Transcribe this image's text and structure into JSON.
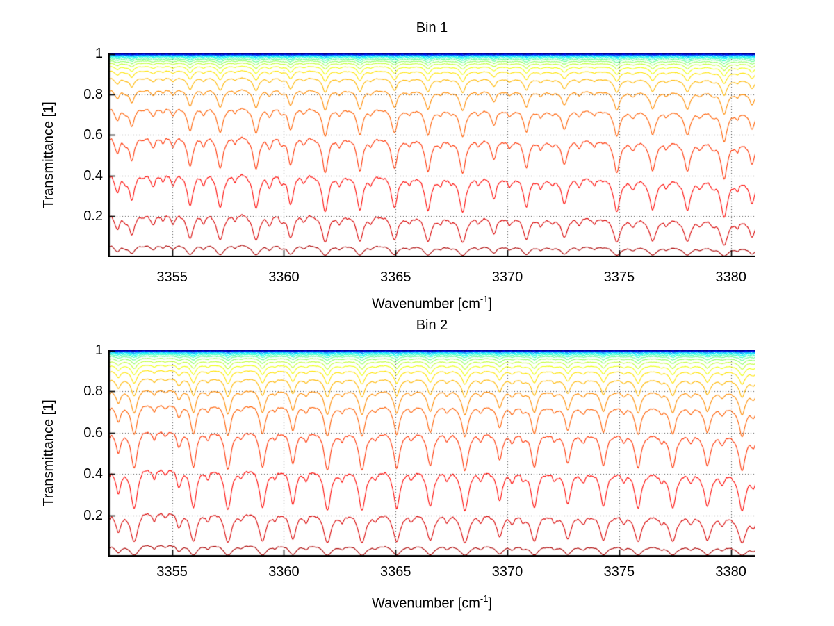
{
  "figure": {
    "background": "#ffffff",
    "axis_color": "#000000",
    "grid_color": "#4d4d4d",
    "grid_style": "dotted"
  },
  "line_colors": [
    "#000080",
    "#0000AC",
    "#0000D8",
    "#0006FF",
    "#0032FF",
    "#005EFF",
    "#008BFF",
    "#00B7FF",
    "#00E3FF",
    "#11FFEE",
    "#3DFFC2",
    "#69FF96",
    "#96FF69",
    "#C2FF3D",
    "#EEFF11",
    "#FFE300",
    "#FFB700",
    "#FF8B00",
    "#FF5E00",
    "#FF3200",
    "#FF0600",
    "#D80000",
    "#AC0000",
    "#800000"
  ],
  "chart_data": [
    {
      "type": "line",
      "title": "Bin 1",
      "xlabel": {
        "prefix": "Wavenumber [cm",
        "sup": "-1",
        "suffix": "]"
      },
      "ylabel": "Transmittance [1]",
      "x_range": [
        3352.15,
        3381.1
      ],
      "y_range": [
        0,
        1
      ],
      "x_ticks": [
        {
          "value": 3355,
          "label": "3355"
        },
        {
          "value": 3360,
          "label": "3360"
        },
        {
          "value": 3365,
          "label": "3365"
        },
        {
          "value": 3370,
          "label": "3370"
        },
        {
          "value": 3375,
          "label": "3375"
        },
        {
          "value": 3380,
          "label": "3380"
        }
      ],
      "y_ticks": [
        {
          "value": 1,
          "label": "1"
        },
        {
          "value": 0.8,
          "label": "0.8"
        },
        {
          "value": 0.6,
          "label": "0.6"
        },
        {
          "value": 0.4,
          "label": "0.4"
        },
        {
          "value": 0.2,
          "label": "0.2"
        }
      ],
      "grid": "on",
      "legend": "none",
      "model": "series i: T_i(x) = exp(-scale_i * k(x)); k(x) = continuum.base + continuum.slope*(x-xmin)/(xmax-xmin) + sum over spectral_lines [c,s,w] of s/(1+((x-c)/w)^2)",
      "continuum": {
        "base": 0.9,
        "slope": 0.15
      },
      "absorption_scales": [
        0.0004,
        0.0008,
        0.0013,
        0.002,
        0.003,
        0.0045,
        0.0062,
        0.0085,
        0.0115,
        0.0155,
        0.021,
        0.028,
        0.037,
        0.049,
        0.066,
        0.09,
        0.13,
        0.2,
        0.32,
        0.54,
        0.92,
        1.6,
        2.9,
        5.8
      ],
      "first_series_dashed": true,
      "spectral_lines": [
        [
          3352.0,
          0.25,
          0.12
        ],
        [
          3352.55,
          0.3,
          0.14
        ],
        [
          3352.9,
          0.1,
          0.1
        ],
        [
          3353.2,
          0.45,
          0.14
        ],
        [
          3353.7,
          0.08,
          0.1
        ],
        [
          3354.15,
          0.22,
          0.13
        ],
        [
          3354.6,
          0.12,
          0.11
        ],
        [
          3355.05,
          0.18,
          0.12
        ],
        [
          3355.8,
          0.55,
          0.15
        ],
        [
          3356.4,
          0.14,
          0.11
        ],
        [
          3357.15,
          0.6,
          0.15
        ],
        [
          3357.8,
          0.1,
          0.1
        ],
        [
          3358.75,
          0.6,
          0.15
        ],
        [
          3359.35,
          0.18,
          0.11
        ],
        [
          3359.9,
          0.1,
          0.1
        ],
        [
          3360.3,
          0.5,
          0.14
        ],
        [
          3360.9,
          0.1,
          0.1
        ],
        [
          3361.85,
          0.65,
          0.15
        ],
        [
          3362.5,
          0.14,
          0.11
        ],
        [
          3363.4,
          0.6,
          0.15
        ],
        [
          3363.9,
          0.1,
          0.1
        ],
        [
          3364.95,
          0.55,
          0.15
        ],
        [
          3365.6,
          0.12,
          0.11
        ],
        [
          3366.45,
          0.6,
          0.15
        ],
        [
          3367.0,
          0.12,
          0.1
        ],
        [
          3367.5,
          0.08,
          0.1
        ],
        [
          3368.0,
          0.65,
          0.15
        ],
        [
          3368.7,
          0.1,
          0.1
        ],
        [
          3369.4,
          0.35,
          0.13
        ],
        [
          3370.1,
          0.14,
          0.11
        ],
        [
          3370.85,
          0.5,
          0.14
        ],
        [
          3371.5,
          0.16,
          0.11
        ],
        [
          3372.0,
          0.1,
          0.1
        ],
        [
          3372.55,
          0.45,
          0.14
        ],
        [
          3373.2,
          0.12,
          0.1
        ],
        [
          3373.9,
          0.1,
          0.1
        ],
        [
          3374.9,
          0.6,
          0.15
        ],
        [
          3375.6,
          0.14,
          0.11
        ],
        [
          3376.5,
          0.55,
          0.15
        ],
        [
          3377.1,
          0.1,
          0.1
        ],
        [
          3378.05,
          0.55,
          0.15
        ],
        [
          3378.6,
          0.1,
          0.1
        ],
        [
          3379.2,
          0.08,
          0.1
        ],
        [
          3379.7,
          0.7,
          0.16
        ],
        [
          3380.3,
          0.12,
          0.1
        ],
        [
          3380.95,
          0.4,
          0.13
        ]
      ]
    },
    {
      "type": "line",
      "title": "Bin 2",
      "xlabel": {
        "prefix": "Wavenumber [cm",
        "sup": "-1",
        "suffix": "]"
      },
      "ylabel": "Transmittance [1]",
      "x_range": [
        3352.15,
        3381.1
      ],
      "y_range": [
        0,
        1
      ],
      "x_ticks": [
        {
          "value": 3355,
          "label": "3355"
        },
        {
          "value": 3360,
          "label": "3360"
        },
        {
          "value": 3365,
          "label": "3365"
        },
        {
          "value": 3370,
          "label": "3370"
        },
        {
          "value": 3375,
          "label": "3375"
        },
        {
          "value": 3380,
          "label": "3380"
        }
      ],
      "y_ticks": [
        {
          "value": 1,
          "label": "1"
        },
        {
          "value": 0.8,
          "label": "0.8"
        },
        {
          "value": 0.6,
          "label": "0.6"
        },
        {
          "value": 0.4,
          "label": "0.4"
        },
        {
          "value": 0.2,
          "label": "0.2"
        }
      ],
      "grid": "on",
      "legend": "none",
      "model": "series i: T_i(x) = exp(-scale_i * k(x)); k(x) = continuum.base + continuum.slope*(x-xmin)/(xmax-xmin) + sum over spectral_lines [c,s,w] of s/(1+((x-c)/w)^2)",
      "continuum": {
        "base": 0.92,
        "slope": 0.12
      },
      "absorption_scales": [
        0.0004,
        0.0008,
        0.0013,
        0.002,
        0.003,
        0.0045,
        0.0062,
        0.0085,
        0.0115,
        0.0155,
        0.021,
        0.029,
        0.04,
        0.055,
        0.075,
        0.103,
        0.148,
        0.215,
        0.31,
        0.5,
        0.86,
        1.55,
        2.9,
        5.9
      ],
      "first_series_dashed": true,
      "spectral_lines": [
        [
          3352.05,
          0.3,
          0.13
        ],
        [
          3352.6,
          0.4,
          0.14
        ],
        [
          3353.3,
          0.75,
          0.16
        ],
        [
          3354.2,
          0.18,
          0.11
        ],
        [
          3354.7,
          0.12,
          0.1
        ],
        [
          3355.3,
          0.3,
          0.12
        ],
        [
          3355.95,
          0.7,
          0.15
        ],
        [
          3356.6,
          0.15,
          0.11
        ],
        [
          3357.5,
          0.75,
          0.16
        ],
        [
          3358.1,
          0.12,
          0.1
        ],
        [
          3359.05,
          0.7,
          0.15
        ],
        [
          3359.6,
          0.12,
          0.1
        ],
        [
          3360.4,
          0.6,
          0.15
        ],
        [
          3361.0,
          0.15,
          0.11
        ],
        [
          3361.95,
          0.75,
          0.16
        ],
        [
          3362.6,
          0.15,
          0.11
        ],
        [
          3363.5,
          0.75,
          0.16
        ],
        [
          3364.1,
          0.12,
          0.1
        ],
        [
          3365.05,
          0.7,
          0.15
        ],
        [
          3365.7,
          0.12,
          0.1
        ],
        [
          3366.55,
          0.65,
          0.15
        ],
        [
          3367.3,
          0.12,
          0.1
        ],
        [
          3368.1,
          0.75,
          0.16
        ],
        [
          3368.8,
          0.12,
          0.1
        ],
        [
          3369.65,
          0.5,
          0.14
        ],
        [
          3370.2,
          0.15,
          0.11
        ],
        [
          3370.7,
          0.1,
          0.1
        ],
        [
          3371.2,
          0.65,
          0.15
        ],
        [
          3372.1,
          0.12,
          0.1
        ],
        [
          3372.7,
          0.55,
          0.15
        ],
        [
          3373.4,
          0.15,
          0.11
        ],
        [
          3374.3,
          0.6,
          0.15
        ],
        [
          3375.2,
          0.12,
          0.1
        ],
        [
          3375.85,
          0.65,
          0.15
        ],
        [
          3376.9,
          0.12,
          0.1
        ],
        [
          3377.4,
          0.65,
          0.15
        ],
        [
          3378.2,
          0.12,
          0.1
        ],
        [
          3378.95,
          0.6,
          0.15
        ],
        [
          3379.6,
          0.15,
          0.11
        ],
        [
          3380.5,
          0.7,
          0.16
        ],
        [
          3381.0,
          0.2,
          0.12
        ]
      ]
    }
  ]
}
